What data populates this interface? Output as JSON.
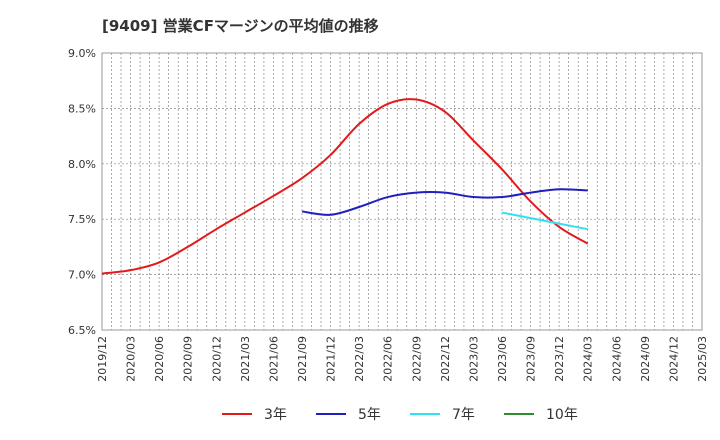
{
  "chart_data": {
    "type": "line",
    "title": "[9409]  営業CFマージンの平均値の推移",
    "xlabel": "",
    "ylabel": "",
    "ylim": [
      6.5,
      9.0
    ],
    "y_ticks": [
      "6.5%",
      "7.0%",
      "7.5%",
      "8.0%",
      "8.5%",
      "9.0%"
    ],
    "x_ticks": [
      "2019/12",
      "2020/03",
      "2020/06",
      "2020/09",
      "2020/12",
      "2021/03",
      "2021/06",
      "2021/09",
      "2021/12",
      "2022/03",
      "2022/06",
      "2022/09",
      "2022/12",
      "2023/03",
      "2023/06",
      "2023/09",
      "2023/12",
      "2024/03",
      "2024/06",
      "2024/09",
      "2024/12",
      "2025/03"
    ],
    "grid": true,
    "legend_position": "bottom",
    "series": [
      {
        "name": "3年",
        "color": "#e31a1c",
        "x": [
          "2019/12",
          "2020/03",
          "2020/06",
          "2020/09",
          "2020/12",
          "2021/03",
          "2021/06",
          "2021/09",
          "2021/12",
          "2022/03",
          "2022/06",
          "2022/09",
          "2022/12",
          "2023/03",
          "2023/06",
          "2023/09",
          "2023/12",
          "2024/03"
        ],
        "values": [
          7.01,
          7.04,
          7.11,
          7.25,
          7.41,
          7.56,
          7.71,
          7.87,
          8.08,
          8.36,
          8.54,
          8.58,
          8.47,
          8.21,
          7.95,
          7.66,
          7.43,
          7.28
        ]
      },
      {
        "name": "5年",
        "color": "#1f1fbf",
        "x": [
          "2021/09",
          "2021/12",
          "2022/03",
          "2022/06",
          "2022/09",
          "2022/12",
          "2023/03",
          "2023/06",
          "2023/09",
          "2023/12",
          "2024/03"
        ],
        "values": [
          7.57,
          7.54,
          7.61,
          7.7,
          7.74,
          7.74,
          7.7,
          7.7,
          7.74,
          7.77,
          7.76
        ]
      },
      {
        "name": "7年",
        "color": "#33e0f0",
        "x": [
          "2023/06",
          "2023/09",
          "2023/12",
          "2024/03"
        ],
        "values": [
          7.56,
          7.51,
          7.46,
          7.41
        ]
      },
      {
        "name": "10年",
        "color": "#2e8b2e",
        "x": [],
        "values": []
      }
    ]
  }
}
